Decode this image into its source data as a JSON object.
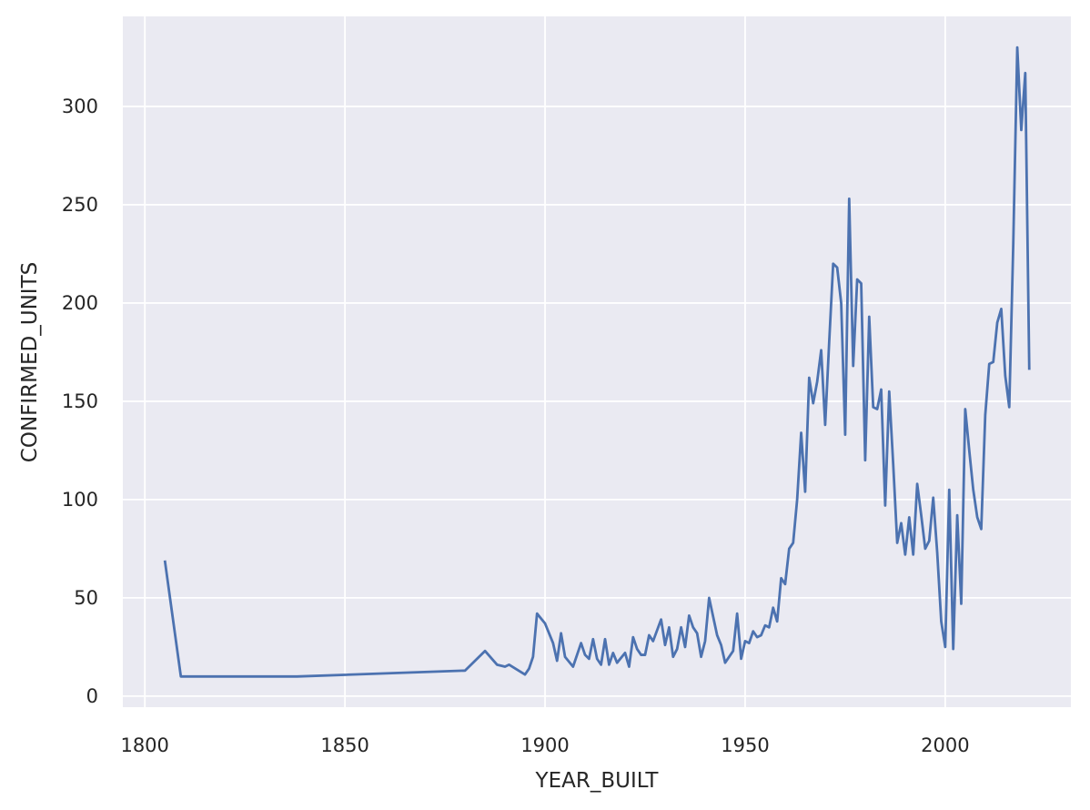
{
  "chart_data": {
    "type": "line",
    "xlabel": "YEAR_BUILT",
    "ylabel": "CONFIRMED_UNITS",
    "color": "#4c72b0",
    "grid": true,
    "xlim": [
      1794.5,
      2031.4
    ],
    "ylim": [
      -5.6,
      345.8
    ],
    "xticks": [
      1800,
      1850,
      1900,
      1950,
      2000
    ],
    "yticks": [
      0,
      50,
      100,
      150,
      200,
      250,
      300
    ],
    "x": [
      1805,
      1809,
      1838,
      1880,
      1885,
      1888,
      1890,
      1891,
      1895,
      1896,
      1897,
      1898,
      1900,
      1902,
      1903,
      1904,
      1905,
      1907,
      1909,
      1910,
      1911,
      1912,
      1913,
      1914,
      1915,
      1916,
      1917,
      1918,
      1920,
      1921,
      1922,
      1923,
      1924,
      1925,
      1926,
      1927,
      1929,
      1930,
      1931,
      1932,
      1933,
      1934,
      1935,
      1936,
      1937,
      1938,
      1939,
      1940,
      1941,
      1943,
      1944,
      1945,
      1947,
      1948,
      1949,
      1950,
      1951,
      1952,
      1953,
      1954,
      1955,
      1956,
      1957,
      1958,
      1959,
      1960,
      1961,
      1962,
      1963,
      1964,
      1965,
      1966,
      1967,
      1968,
      1969,
      1970,
      1971,
      1972,
      1973,
      1974,
      1975,
      1976,
      1977,
      1978,
      1979,
      1980,
      1981,
      1982,
      1983,
      1984,
      1985,
      1986,
      1987,
      1988,
      1989,
      1990,
      1991,
      1992,
      1993,
      1994,
      1995,
      1996,
      1997,
      1998,
      1999,
      2000,
      2001,
      2002,
      2003,
      2004,
      2005,
      2006,
      2007,
      2008,
      2009,
      2010,
      2011,
      2012,
      2013,
      2014,
      2015,
      2016,
      2017,
      2018,
      2019,
      2020,
      2021
    ],
    "values": [
      69,
      10,
      10,
      13,
      23,
      16,
      15,
      16,
      11,
      14,
      20,
      42,
      37,
      27,
      18,
      32,
      20,
      15,
      27,
      21,
      19,
      29,
      19,
      16,
      29,
      16,
      22,
      17,
      22,
      15,
      30,
      24,
      21,
      21,
      31,
      28,
      39,
      26,
      35,
      20,
      24,
      35,
      25,
      41,
      35,
      32,
      20,
      28,
      50,
      31,
      26,
      17,
      23,
      42,
      19,
      28,
      27,
      33,
      30,
      31,
      36,
      35,
      45,
      38,
      60,
      57,
      75,
      78,
      100,
      134,
      104,
      162,
      149,
      160,
      176,
      138,
      180,
      220,
      218,
      200,
      133,
      253,
      168,
      212,
      210,
      120,
      193,
      147,
      146,
      156,
      97,
      155,
      118,
      78,
      88,
      72,
      91,
      72,
      108,
      92,
      75,
      79,
      101,
      73,
      38,
      25,
      105,
      24,
      92,
      47,
      146,
      125,
      105,
      91,
      85,
      143,
      169,
      170,
      190,
      197,
      163,
      147,
      230,
      330,
      288,
      317,
      166
    ]
  }
}
